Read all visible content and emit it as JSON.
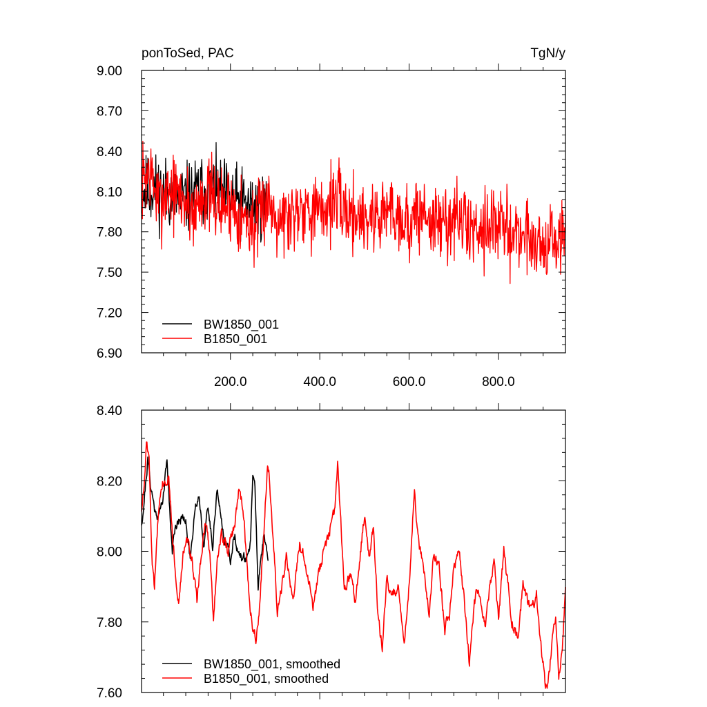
{
  "chart_data": [
    {
      "type": "line",
      "title_left": "ponToSed, PAC",
      "title_right": "TgN/y",
      "xlabel": "",
      "ylabel": "",
      "xlim": [
        1,
        950
      ],
      "ylim": [
        6.9,
        9.0
      ],
      "xticks": [
        200,
        400,
        600,
        800
      ],
      "xtick_labels": [
        "200.0",
        "400.0",
        "600.0",
        "800.0"
      ],
      "yticks": [
        6.9,
        7.2,
        7.5,
        7.8,
        8.1,
        8.4,
        8.7,
        9.0
      ],
      "ytick_labels": [
        "6.90",
        "7.20",
        "7.50",
        "7.80",
        "8.10",
        "8.40",
        "8.70",
        "9.00"
      ],
      "legend_position": "bottom-left",
      "series": [
        {
          "name": "BW1850_001",
          "color": "#000000",
          "x": [
            1,
            280
          ],
          "seed": 11,
          "amp": 0.2,
          "clip": [
            7.43,
            8.72
          ],
          "anchors": [
            [
              1,
              8.1
            ],
            [
              30,
              8.12
            ],
            [
              60,
              8.08
            ],
            [
              100,
              8.04
            ],
            [
              140,
              8.12
            ],
            [
              180,
              8.08
            ],
            [
              220,
              8.02
            ],
            [
              250,
              7.98
            ],
            [
              280,
              8.0
            ]
          ]
        },
        {
          "name": "B1850_001",
          "color": "#ff0000",
          "x": [
            1,
            950
          ],
          "seed": 7,
          "amp": 0.22,
          "clip": [
            7.16,
            8.72
          ],
          "anchors": [
            [
              1,
              8.18
            ],
            [
              20,
              8.25
            ],
            [
              40,
              8.0
            ],
            [
              60,
              8.12
            ],
            [
              80,
              8.08
            ],
            [
              100,
              8.02
            ],
            [
              120,
              7.95
            ],
            [
              140,
              8.1
            ],
            [
              160,
              8.05
            ],
            [
              180,
              7.98
            ],
            [
              200,
              8.02
            ],
            [
              230,
              7.9
            ],
            [
              260,
              7.82
            ],
            [
              280,
              8.05
            ],
            [
              300,
              7.95
            ],
            [
              330,
              7.9
            ],
            [
              360,
              8.02
            ],
            [
              400,
              7.92
            ],
            [
              430,
              8.05
            ],
            [
              460,
              7.95
            ],
            [
              490,
              7.92
            ],
            [
              520,
              7.9
            ],
            [
              560,
              7.98
            ],
            [
              600,
              7.85
            ],
            [
              630,
              7.95
            ],
            [
              660,
              7.85
            ],
            [
              700,
              7.9
            ],
            [
              740,
              7.82
            ],
            [
              780,
              7.88
            ],
            [
              820,
              7.8
            ],
            [
              860,
              7.78
            ],
            [
              900,
              7.7
            ],
            [
              950,
              7.75
            ]
          ]
        }
      ]
    },
    {
      "type": "line",
      "title_left": "",
      "title_right": "",
      "xlabel": "",
      "ylabel": "",
      "xlim": [
        1,
        950
      ],
      "ylim": [
        7.6,
        8.4
      ],
      "xticks": [
        200,
        400,
        600,
        800
      ],
      "xtick_labels": [],
      "yticks": [
        7.6,
        7.8,
        8.0,
        8.2,
        8.4
      ],
      "ytick_labels": [
        "7.60",
        "7.80",
        "8.00",
        "8.20",
        "8.40"
      ],
      "legend_position": "bottom-left",
      "series": [
        {
          "name": "BW1850_001, smoothed",
          "color": "#000000",
          "x": [
            1,
            285
          ],
          "seed": 21,
          "amp": 0.03,
          "anchors": [
            [
              1,
              8.08
            ],
            [
              5,
              8.12
            ],
            [
              15,
              8.26
            ],
            [
              20,
              8.2
            ],
            [
              30,
              8.12
            ],
            [
              40,
              8.1
            ],
            [
              50,
              8.16
            ],
            [
              58,
              8.26
            ],
            [
              65,
              8.1
            ],
            [
              70,
              8.0
            ],
            [
              75,
              8.06
            ],
            [
              85,
              8.1
            ],
            [
              100,
              8.08
            ],
            [
              110,
              7.98
            ],
            [
              120,
              8.12
            ],
            [
              130,
              8.16
            ],
            [
              140,
              8.02
            ],
            [
              150,
              8.12
            ],
            [
              160,
              8.02
            ],
            [
              170,
              8.18
            ],
            [
              175,
              8.12
            ],
            [
              185,
              8.05
            ],
            [
              200,
              7.98
            ],
            [
              210,
              8.05
            ],
            [
              220,
              7.98
            ],
            [
              235,
              7.98
            ],
            [
              245,
              8.02
            ],
            [
              250,
              8.22
            ],
            [
              255,
              8.18
            ],
            [
              262,
              7.9
            ],
            [
              268,
              7.96
            ],
            [
              275,
              8.05
            ],
            [
              285,
              7.98
            ]
          ]
        },
        {
          "name": "B1850_001, smoothed",
          "color": "#ff0000",
          "x": [
            1,
            950
          ],
          "seed": 33,
          "amp": 0.035,
          "anchors": [
            [
              1,
              8.12
            ],
            [
              8,
              8.2
            ],
            [
              12,
              8.31
            ],
            [
              18,
              8.25
            ],
            [
              25,
              7.95
            ],
            [
              30,
              7.89
            ],
            [
              35,
              8.05
            ],
            [
              45,
              8.2
            ],
            [
              55,
              8.2
            ],
            [
              62,
              8.22
            ],
            [
              70,
              8.05
            ],
            [
              78,
              7.92
            ],
            [
              85,
              7.86
            ],
            [
              95,
              8.0
            ],
            [
              105,
              8.03
            ],
            [
              115,
              7.97
            ],
            [
              125,
              7.86
            ],
            [
              135,
              8.0
            ],
            [
              145,
              8.08
            ],
            [
              155,
              7.98
            ],
            [
              162,
              7.8
            ],
            [
              170,
              7.98
            ],
            [
              180,
              8.05
            ],
            [
              195,
              8.0
            ],
            [
              210,
              8.08
            ],
            [
              220,
              8.18
            ],
            [
              230,
              8.1
            ],
            [
              240,
              7.9
            ],
            [
              250,
              7.78
            ],
            [
              258,
              7.76
            ],
            [
              265,
              7.85
            ],
            [
              275,
              8.05
            ],
            [
              283,
              8.26
            ],
            [
              288,
              8.2
            ],
            [
              295,
              8.05
            ],
            [
              305,
              7.82
            ],
            [
              315,
              7.9
            ],
            [
              325,
              7.98
            ],
            [
              340,
              7.86
            ],
            [
              355,
              8.02
            ],
            [
              370,
              7.95
            ],
            [
              385,
              7.84
            ],
            [
              400,
              7.95
            ],
            [
              420,
              8.05
            ],
            [
              432,
              8.1
            ],
            [
              440,
              8.24
            ],
            [
              448,
              8.05
            ],
            [
              455,
              7.88
            ],
            [
              470,
              7.94
            ],
            [
              480,
              7.85
            ],
            [
              490,
              7.98
            ],
            [
              500,
              8.1
            ],
            [
              510,
              8.0
            ],
            [
              520,
              8.07
            ],
            [
              530,
              7.82
            ],
            [
              540,
              7.72
            ],
            [
              550,
              7.92
            ],
            [
              560,
              7.87
            ],
            [
              575,
              7.9
            ],
            [
              590,
              7.75
            ],
            [
              600,
              7.9
            ],
            [
              612,
              8.18
            ],
            [
              618,
              8.05
            ],
            [
              625,
              8.0
            ],
            [
              635,
              7.92
            ],
            [
              645,
              7.82
            ],
            [
              655,
              8.0
            ],
            [
              668,
              7.95
            ],
            [
              680,
              7.78
            ],
            [
              690,
              7.82
            ],
            [
              700,
              7.95
            ],
            [
              712,
              8.0
            ],
            [
              722,
              7.88
            ],
            [
              735,
              7.68
            ],
            [
              745,
              7.85
            ],
            [
              755,
              7.9
            ],
            [
              770,
              7.78
            ],
            [
              780,
              7.9
            ],
            [
              790,
              7.98
            ],
            [
              800,
              7.8
            ],
            [
              812,
              8.0
            ],
            [
              820,
              7.92
            ],
            [
              830,
              7.8
            ],
            [
              845,
              7.75
            ],
            [
              855,
              7.92
            ],
            [
              865,
              7.85
            ],
            [
              875,
              7.83
            ],
            [
              885,
              7.88
            ],
            [
              895,
              7.74
            ],
            [
              905,
              7.62
            ],
            [
              912,
              7.64
            ],
            [
              920,
              7.74
            ],
            [
              928,
              7.8
            ],
            [
              935,
              7.65
            ],
            [
              942,
              7.72
            ],
            [
              950,
              7.88
            ]
          ]
        }
      ]
    }
  ]
}
